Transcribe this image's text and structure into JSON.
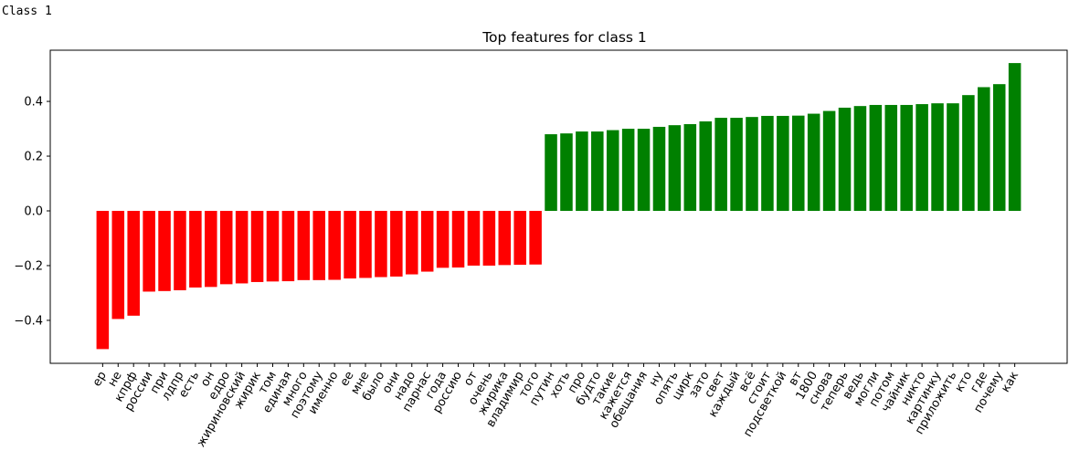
{
  "header": "Class 1",
  "chart_data": {
    "type": "bar",
    "title": "Top features for class 1",
    "categories": [
      "ер",
      "не",
      "кпрф",
      "россии",
      "при",
      "лдпр",
      "есть",
      "он",
      "едро",
      "жириновский",
      "жирик",
      "том",
      "единая",
      "много",
      "поэтому",
      "именно",
      "ее",
      "мне",
      "было",
      "они",
      "надо",
      "парнас",
      "года",
      "россию",
      "от",
      "очень",
      "жирика",
      "владимир",
      "того",
      "путин",
      "хоть",
      "про",
      "будто",
      "такие",
      "кажется",
      "обещания",
      "ну",
      "опять",
      "цирк",
      "зато",
      "свет",
      "каждый",
      "всё",
      "стоит",
      "подсветкой",
      "вт",
      "1800",
      "снова",
      "теперь",
      "ведь",
      "могли",
      "потом",
      "чайник",
      "никто",
      "картинку",
      "приложить",
      "кто",
      "где",
      "почему",
      "как"
    ],
    "values": [
      -0.505,
      -0.395,
      -0.383,
      -0.295,
      -0.293,
      -0.29,
      -0.28,
      -0.278,
      -0.268,
      -0.265,
      -0.26,
      -0.258,
      -0.257,
      -0.253,
      -0.253,
      -0.252,
      -0.247,
      -0.245,
      -0.242,
      -0.24,
      -0.232,
      -0.222,
      -0.208,
      -0.207,
      -0.2,
      -0.2,
      -0.198,
      -0.197,
      -0.196,
      0.28,
      0.283,
      0.29,
      0.29,
      0.295,
      0.3,
      0.3,
      0.307,
      0.313,
      0.317,
      0.327,
      0.34,
      0.34,
      0.343,
      0.347,
      0.347,
      0.348,
      0.355,
      0.365,
      0.377,
      0.383,
      0.387,
      0.387,
      0.387,
      0.39,
      0.393,
      0.393,
      0.423,
      0.452,
      0.463,
      0.54
    ],
    "color_negative": "red",
    "color_positive": "green",
    "ylim": [
      -0.557,
      0.587
    ],
    "yticks": [
      {
        "value": -0.4,
        "label": "−0.4"
      },
      {
        "value": -0.2,
        "label": "−0.2"
      },
      {
        "value": 0,
        "label": "0.0"
      },
      0.2,
      0.4
    ],
    "grid": false
  }
}
